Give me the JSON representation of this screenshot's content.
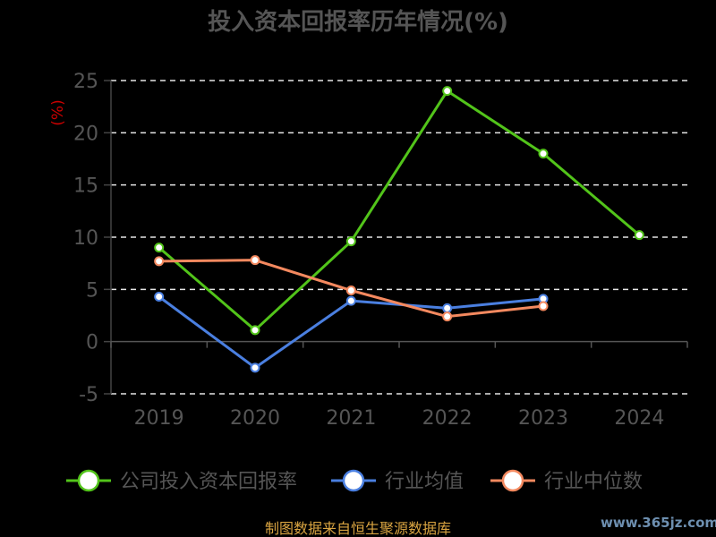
{
  "chart_data": {
    "type": "line",
    "title": "投入资本回报率历年情况(%)",
    "ylabel": "(%)",
    "categories": [
      "2019",
      "2020",
      "2021",
      "2022",
      "2023",
      "2024"
    ],
    "ylim": [
      -5,
      25
    ],
    "yticks": [
      -5,
      0,
      5,
      10,
      15,
      20,
      25
    ],
    "grid": true,
    "legend_position": "bottom",
    "series": [
      {
        "name": "公司投入资本回报率",
        "color": "#52c41a",
        "values": [
          9.0,
          1.1,
          9.6,
          24.0,
          18.0,
          10.2
        ]
      },
      {
        "name": "行业均值",
        "color": "#4a7fe0",
        "values": [
          4.3,
          -2.5,
          3.9,
          3.2,
          4.1,
          null
        ]
      },
      {
        "name": "行业中位数",
        "color": "#f4895f",
        "values": [
          7.7,
          7.8,
          4.9,
          2.4,
          3.4,
          null
        ]
      }
    ]
  },
  "footer": {
    "source": "制图数据来自恒生聚源数据库",
    "watermark": "www.365jz.com"
  }
}
